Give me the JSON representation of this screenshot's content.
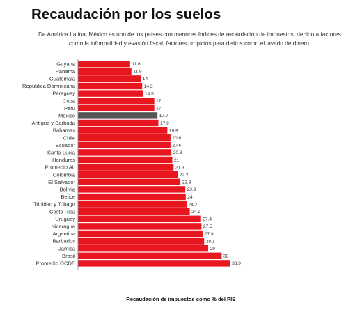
{
  "title": "Recaudación por los suelos",
  "subtitle": "De América Latina, México es uno de los países con menores índices de recaudación de impuestos, debido a factores como la informalidad y evasión fiscal, factores propicios para delitos como el lavado de dinero.",
  "chart_data": {
    "type": "bar",
    "orientation": "horizontal",
    "xlabel": "Recaudación de impuestos como % del PIB",
    "ylabel": "",
    "xlim": [
      0,
      35
    ],
    "grid": false,
    "colors": {
      "default": "#e8161e",
      "highlight": "#555555"
    },
    "highlight": "México",
    "categories": [
      "Guyana",
      "Panamá",
      "Guatemala",
      "República Dominicana",
      "Paraguay",
      "Cuba",
      "Perú",
      "México",
      "Antigua y Barbuda",
      "Bahamas",
      "Chile",
      "Ecuador",
      "Santa Lucia",
      "Honduras",
      "Promedio AL",
      "Colombia",
      "El Salvador",
      "Bolivia",
      "Belice",
      "Trinidad y Tobago",
      "Costa Rica",
      "Uruguay",
      "Nicaragua",
      "Argentina",
      "Barbados",
      "Jamica",
      "Brasil",
      "Promedio OCDE"
    ],
    "values": [
      11.6,
      11.9,
      14,
      14.3,
      14.5,
      17,
      17,
      17.7,
      17.9,
      19.9,
      20.6,
      20.6,
      20.8,
      21,
      21.3,
      22.2,
      22.8,
      23.9,
      24,
      24.2,
      24.9,
      27.4,
      27.5,
      27.8,
      28.1,
      29,
      32,
      33.9
    ]
  }
}
